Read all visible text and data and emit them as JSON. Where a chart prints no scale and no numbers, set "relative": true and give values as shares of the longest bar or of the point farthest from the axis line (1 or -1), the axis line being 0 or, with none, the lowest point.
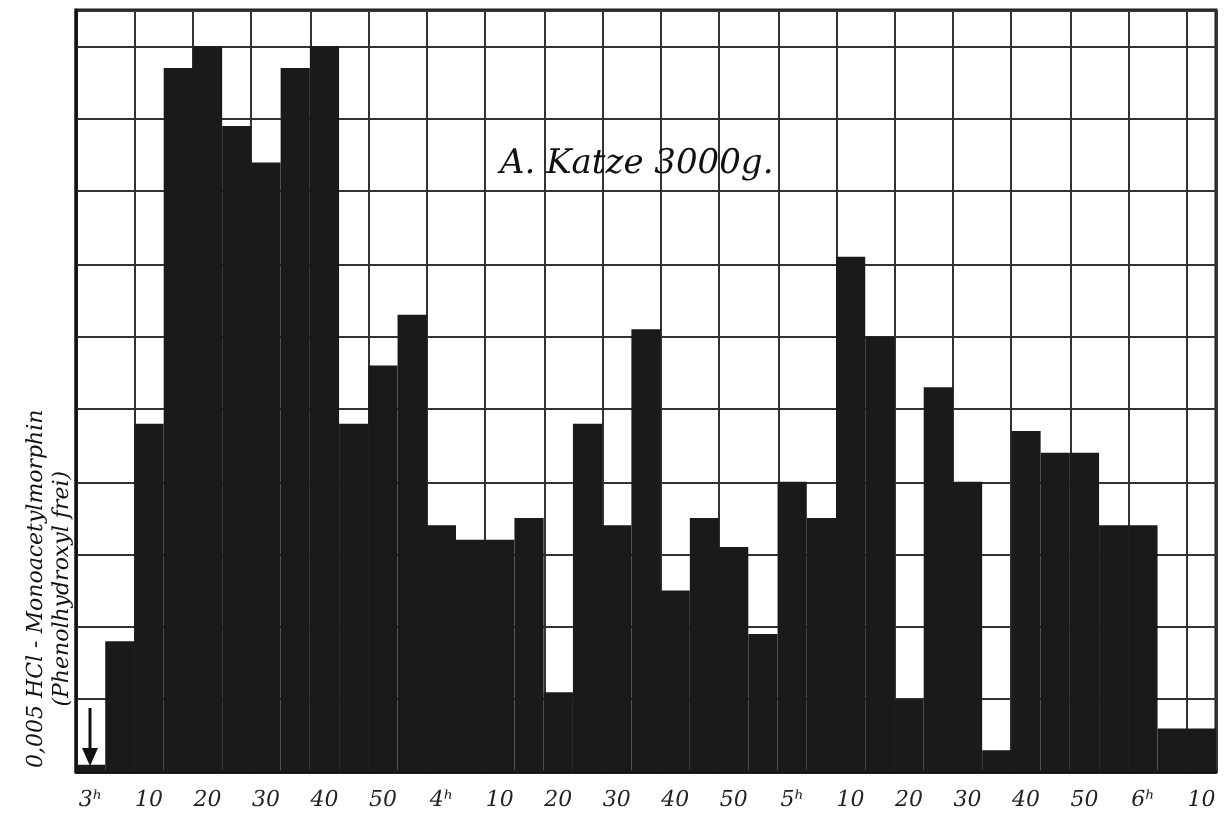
{
  "chart_data": {
    "type": "bar",
    "title": "A. Katze 3000g.",
    "relative": true,
    "annotations": [
      "0,005 HCl - Monoacetylmorphin\n(Phenolhydroxyl frei)"
    ],
    "categories": [
      "3ʰ",
      null,
      "10",
      null,
      "20",
      null,
      "30",
      null,
      "40",
      null,
      "50",
      null,
      "4ʰ",
      null,
      "10",
      null,
      "20",
      null,
      "30",
      null,
      "40",
      null,
      "50",
      null,
      "5ʰ",
      null,
      "10",
      null,
      "20",
      null,
      "30",
      null,
      "40",
      null,
      "50",
      null,
      "6ʰ",
      null,
      "10"
    ],
    "values": [
      0.01,
      0.18,
      0.48,
      0.97,
      1,
      0.89,
      0.84,
      0.97,
      1,
      0.48,
      0.56,
      0.63,
      0.34,
      0.32,
      0.32,
      0.35,
      0.11,
      0.48,
      0.34,
      0.61,
      0.25,
      0.35,
      0.31,
      0.19,
      0.4,
      0.35,
      0.71,
      0.6,
      0.1,
      0.53,
      0.4,
      0.03,
      0.47,
      0.44,
      0.44,
      0.34,
      0.34,
      0.06,
      0.06
    ],
    "color": "#1a1a1a",
    "grid": true
  }
}
